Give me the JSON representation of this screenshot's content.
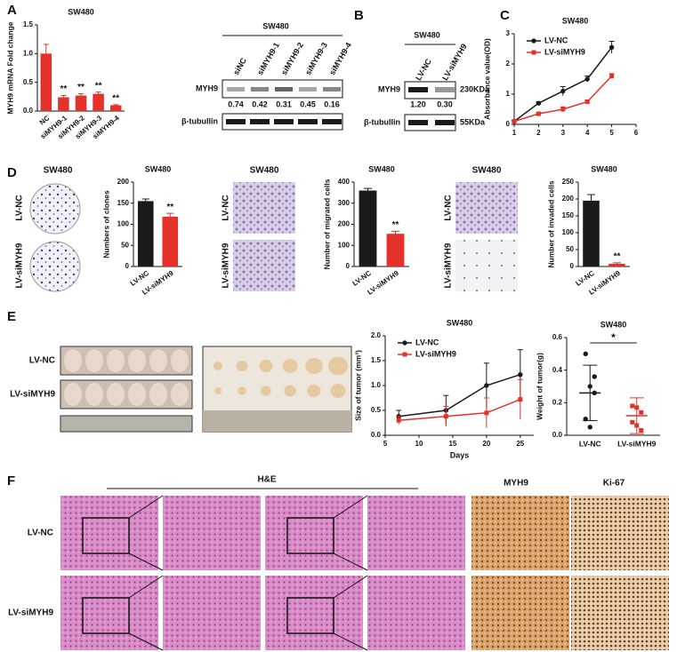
{
  "panel_labels": [
    "A",
    "B",
    "C",
    "D",
    "E",
    "F"
  ],
  "chart_data": [
    {
      "type": "bar",
      "title": "SW480",
      "y_label": "MYH9 mRNA Fold change",
      "categories": [
        "NC",
        "siMYH9-1",
        "siMYH9-2",
        "siMYH9-3",
        "siMYH9-4"
      ],
      "values": [
        1.0,
        0.24,
        0.27,
        0.3,
        0.1
      ],
      "errors": [
        0.16,
        0.03,
        0.03,
        0.03,
        0.01
      ],
      "color": "#e4322b",
      "significance": [
        null,
        "**",
        "**",
        "**",
        "**"
      ],
      "ylim": [
        0,
        1.5
      ],
      "yticks": [
        {
          "value": 0,
          "label": "0.0"
        },
        {
          "value": 0.5,
          "label": "0.5"
        },
        {
          "value": 1,
          "label": "1.0"
        },
        {
          "value": 1.5,
          "label": "1.5"
        }
      ]
    },
    {
      "type": "line",
      "title": "SW480",
      "y_label": "Absorbance value(OD)",
      "x": [
        1,
        2,
        3,
        4,
        5
      ],
      "xlim": [
        1,
        6
      ],
      "xticks": [
        1,
        2,
        3,
        4,
        5,
        6
      ],
      "ylim": [
        0,
        3
      ],
      "yticks": [
        0,
        1,
        2,
        3
      ],
      "legend": "upper left",
      "series": [
        {
          "name": "LV-NC",
          "color": "#1a1a1a",
          "values": [
            0.1,
            0.7,
            1.1,
            1.5,
            2.55
          ],
          "errors": [
            0.03,
            0.05,
            0.15,
            0.1,
            0.2
          ]
        },
        {
          "name": "LV-siMYH9",
          "color": "#e4322b",
          "values": [
            0.1,
            0.35,
            0.5,
            0.75,
            1.6
          ],
          "errors": [
            0.02,
            0.04,
            0.08,
            0.05,
            0.08
          ]
        }
      ]
    },
    {
      "type": "bar",
      "title": "SW480",
      "y_label": "Numbers of clones",
      "categories": [
        "LV-NC",
        "LV-siMYH9"
      ],
      "values": [
        155,
        118
      ],
      "errors": [
        5,
        8
      ],
      "colors": [
        "#1a1a1a",
        "#e4322b"
      ],
      "significance": [
        null,
        "**"
      ],
      "ylim": [
        0,
        200
      ],
      "yticks": [
        0,
        50,
        100,
        150,
        200
      ]
    },
    {
      "type": "bar",
      "title": "SW480",
      "y_label": "Number of migrated cells",
      "categories": [
        "LV-NC",
        "LV-siMYH9"
      ],
      "values": [
        360,
        155
      ],
      "errors": [
        10,
        12
      ],
      "colors": [
        "#1a1a1a",
        "#e4322b"
      ],
      "significance": [
        null,
        "**"
      ],
      "ylim": [
        0,
        400
      ],
      "yticks": [
        0,
        100,
        200,
        300,
        400
      ]
    },
    {
      "type": "bar",
      "title": "SW480",
      "y_label": "Number of invaded cells",
      "categories": [
        "LV-NC",
        "LV-siMYH9"
      ],
      "values": [
        195,
        8
      ],
      "errors": [
        18,
        3
      ],
      "colors": [
        "#1a1a1a",
        "#e4322b"
      ],
      "significance": [
        null,
        "**"
      ],
      "ylim": [
        0,
        250
      ],
      "yticks": [
        0,
        50,
        100,
        150,
        200,
        250
      ]
    },
    {
      "type": "line",
      "title": "SW480",
      "y_label": "Size of tumor (mm³)",
      "x_label": "Days",
      "x": [
        7,
        14,
        20,
        25
      ],
      "xlim": [
        5,
        27
      ],
      "xticks": [
        5,
        10,
        15,
        20,
        25
      ],
      "ylim": [
        0,
        2
      ],
      "yticks": [
        {
          "value": 0,
          "label": "0.0"
        },
        {
          "value": 0.5,
          "label": "0.5"
        },
        {
          "value": 1,
          "label": "1.0"
        },
        {
          "value": 1.5,
          "label": "1.5"
        },
        {
          "value": 2,
          "label": "2.0"
        }
      ],
      "legend": "upper left",
      "series": [
        {
          "name": "LV-NC",
          "color": "#1a1a1a",
          "values": [
            0.38,
            0.5,
            1.0,
            1.22
          ],
          "errors": [
            0.12,
            0.3,
            0.45,
            0.5
          ]
        },
        {
          "name": "LV-siMYH9",
          "color": "#e4322b",
          "values": [
            0.3,
            0.38,
            0.45,
            0.72
          ],
          "errors": [
            0.08,
            0.2,
            0.3,
            0.4
          ]
        }
      ]
    },
    {
      "type": "dot",
      "title": "SW480",
      "y_label": "Weight of tumor(g)",
      "categories": [
        "LV-NC",
        "LV-siMYH9"
      ],
      "colors": [
        "#1a1a1a",
        "#e4322b"
      ],
      "points": [
        [
          0.5,
          0.3,
          0.26,
          0.1,
          0.05,
          0.36
        ],
        [
          0.18,
          0.17,
          0.14,
          0.08,
          0.06,
          0.03
        ]
      ],
      "means": [
        0.26,
        0.12
      ],
      "sds": [
        0.17,
        0.11
      ],
      "significance": "*",
      "ylim": [
        0,
        0.6
      ],
      "yticks": [
        {
          "value": 0,
          "label": "0.0"
        },
        {
          "value": 0.2,
          "label": "0.2"
        },
        {
          "value": 0.4,
          "label": "0.4"
        },
        {
          "value": 0.6,
          "label": "0.6"
        }
      ]
    }
  ],
  "blot_a": {
    "title": "SW480",
    "lanes": [
      "siNC",
      "siMYH9-1",
      "siMYH9-2",
      "siMYH9-3",
      "siMYH9-4"
    ],
    "rows": [
      "MYH9",
      "β-tubullin"
    ],
    "ratios": [
      "0.74",
      "0.42",
      "0.31",
      "0.45",
      "0.16"
    ]
  },
  "blot_b": {
    "title": "SW480",
    "lanes": [
      "LV-NC",
      "LV-siMYH9"
    ],
    "rows": [
      "MYH9",
      "β-tubullin"
    ],
    "sizes": [
      "230KDa",
      "55KDa"
    ],
    "ratios": [
      "1.20",
      "0.30"
    ]
  },
  "assays_d": [
    {
      "title": "SW480",
      "rows": [
        "LV-NC",
        "LV-siMYH9"
      ]
    },
    {
      "title": "SW480",
      "rows": [
        "LV-NC",
        "LV-siMYH9"
      ]
    },
    {
      "title": "SW480",
      "rows": [
        "LV-NC",
        "LV-siMYH9"
      ]
    }
  ],
  "xenograft_e": {
    "rows": [
      "LV-NC",
      "LV-siMYH9"
    ]
  },
  "histology_f": {
    "headers": [
      "H&E",
      "MYH9",
      "Ki-67"
    ],
    "rows": [
      "LV-NC",
      "LV-siMYH9"
    ]
  }
}
